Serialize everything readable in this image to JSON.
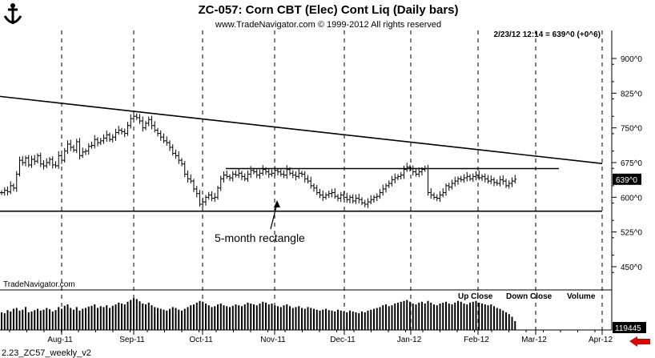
{
  "title": "ZC-057:  Corn CBT (Elec) Cont Liq  (Daily bars)",
  "copyright": "www.TradeNavigator.com © 1999-2012 All rights reserved",
  "quote": "2/23/12 12:14 = 639^0 (+0^6)",
  "price_tag": "639^0",
  "volume_tag": "119445",
  "watermark": "TradeNavigator.com",
  "footer": "2.23_ZC57_weekly_v2",
  "legend": {
    "up": "Up Close",
    "down": "Down Close",
    "volume": "Volume"
  },
  "annotation": "5-month rectangle",
  "colors": {
    "bars": "#000000",
    "arrow": "#e00000",
    "background": "#ffffff"
  },
  "chart_data": {
    "type": "bar",
    "subtype": "ohlc-daily-with-volume",
    "x_tick_labels": [
      "Aug-11",
      "Sep-11",
      "Oct-11",
      "Nov-11",
      "Dec-11",
      "Jan-12",
      "Feb-12",
      "Mar-12",
      "Apr-12"
    ],
    "y_tick_labels": [
      "900^0",
      "825^0",
      "750^0",
      "675^0",
      "600^0",
      "525^0",
      "450^0"
    ],
    "y_ticks": [
      900,
      825,
      750,
      675,
      600,
      525,
      450
    ],
    "ylim": [
      400,
      935
    ],
    "closes": [
      610,
      615,
      612,
      625,
      620,
      650,
      680,
      675,
      685,
      670,
      682,
      678,
      690,
      672,
      668,
      675,
      682,
      670,
      668,
      690,
      680,
      700,
      715,
      708,
      702,
      720,
      690,
      698,
      700,
      710,
      712,
      725,
      718,
      722,
      728,
      735,
      725,
      730,
      740,
      745,
      742,
      738,
      755,
      770,
      775,
      772,
      765,
      750,
      760,
      768,
      755,
      745,
      738,
      730,
      722,
      718,
      708,
      695,
      690,
      680,
      672,
      650,
      640,
      635,
      618,
      608,
      585,
      590,
      600,
      605,
      598,
      600,
      620,
      640,
      648,
      645,
      642,
      650,
      648,
      652,
      645,
      640,
      650,
      658,
      655,
      648,
      652,
      660,
      655,
      650,
      652,
      658,
      655,
      650,
      648,
      660,
      652,
      648,
      645,
      652,
      650,
      640,
      635,
      625,
      620,
      610,
      605,
      600,
      605,
      608,
      610,
      602,
      598,
      605,
      600,
      595,
      600,
      592,
      598,
      595,
      588,
      585,
      590,
      595,
      600,
      602,
      610,
      618,
      625,
      630,
      638,
      642,
      645,
      648,
      660,
      665,
      662,
      655,
      650,
      655,
      660,
      662,
      610,
      605,
      600,
      598,
      605,
      610,
      625,
      622,
      630,
      635,
      640,
      638,
      642,
      645,
      640,
      645,
      648,
      642,
      645,
      640,
      635,
      638,
      632,
      630,
      638,
      635,
      625,
      630,
      635,
      639
    ],
    "volume": [
      40,
      38,
      45,
      42,
      48,
      50,
      44,
      46,
      52,
      40,
      42,
      45,
      48,
      44,
      46,
      50,
      47,
      42,
      45,
      52,
      48,
      55,
      58,
      50,
      46,
      52,
      44,
      48,
      50,
      53,
      55,
      58,
      50,
      54,
      52,
      56,
      50,
      55,
      58,
      62,
      60,
      58,
      64,
      68,
      72,
      70,
      65,
      60,
      58,
      62,
      56,
      52,
      50,
      48,
      46,
      44,
      48,
      52,
      50,
      46,
      44,
      48,
      52,
      56,
      58,
      62,
      66,
      64,
      60,
      56,
      52,
      54,
      58,
      60,
      56,
      54,
      52,
      55,
      58,
      56,
      54,
      58,
      62,
      60,
      58,
      56,
      60,
      64,
      62,
      58,
      60,
      56,
      54,
      52,
      56,
      58,
      54,
      50,
      52,
      54,
      50,
      48,
      52,
      50,
      48,
      46,
      44,
      46,
      48,
      45,
      44,
      42,
      46,
      44,
      42,
      40,
      44,
      42,
      40,
      38,
      42,
      40,
      44,
      46,
      48,
      50,
      52,
      56,
      58,
      54,
      56,
      60,
      62,
      64,
      66,
      68,
      64,
      60,
      58,
      62,
      64,
      60,
      66,
      62,
      58,
      56,
      60,
      62,
      64,
      60,
      58,
      62,
      66,
      64,
      60,
      58,
      62,
      64,
      66,
      62,
      60,
      58,
      56,
      58,
      54,
      50,
      48,
      44,
      40,
      36,
      30,
      20
    ],
    "trendline": {
      "start_value": 818,
      "end_value": 673
    },
    "rectangle_top": 662,
    "rectangle_bottom": 570,
    "last_close": 639
  }
}
